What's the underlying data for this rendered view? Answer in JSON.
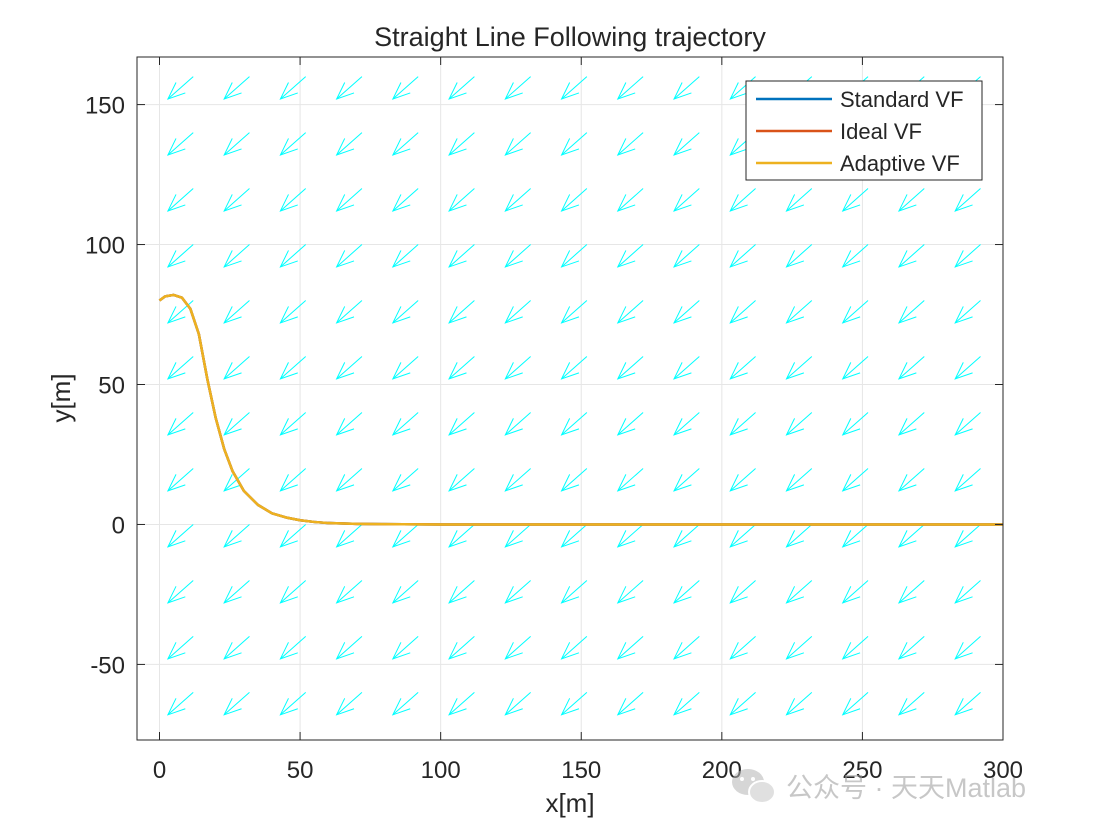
{
  "chart_data": {
    "type": "line",
    "title": "Straight Line Following trajectory",
    "xlabel": "x[m]",
    "ylabel": "y[m]",
    "xlim": [
      -8,
      300
    ],
    "ylim": [
      -77,
      167
    ],
    "xticks": [
      0,
      50,
      100,
      150,
      200,
      250,
      300
    ],
    "yticks": [
      -50,
      0,
      50,
      100,
      150
    ],
    "xtick_labels": [
      "0",
      "50",
      "100",
      "150",
      "200",
      "250",
      "300"
    ],
    "ytick_labels": [
      "-50",
      "0",
      "50",
      "100",
      "150"
    ],
    "grid": true,
    "legend_position": "top-right",
    "series": [
      {
        "name": "Standard VF",
        "color": "#0072BD",
        "x": [
          0,
          2,
          5,
          8,
          11,
          14,
          17,
          20,
          23,
          26,
          30,
          35,
          40,
          45,
          50,
          55,
          60,
          70,
          80,
          100,
          150,
          200,
          250,
          300
        ],
        "y": [
          80,
          81.5,
          82,
          81,
          77,
          68,
          52,
          38,
          27,
          19,
          12,
          7,
          4,
          2.5,
          1.5,
          0.9,
          0.5,
          0.2,
          0.1,
          0,
          0,
          0,
          0,
          0
        ]
      },
      {
        "name": "Ideal VF",
        "color": "#D95319",
        "x": [
          0,
          2,
          5,
          8,
          11,
          14,
          17,
          20,
          23,
          26,
          30,
          35,
          40,
          45,
          50,
          55,
          60,
          70,
          80,
          100,
          150,
          200,
          250,
          300
        ],
        "y": [
          80,
          81.5,
          82,
          81,
          77,
          68,
          52,
          38,
          27,
          19,
          12,
          7,
          4,
          2.5,
          1.5,
          0.9,
          0.5,
          0.2,
          0.1,
          0,
          0,
          0,
          0,
          0
        ]
      },
      {
        "name": "Adaptive VF",
        "color": "#EDB120",
        "x": [
          0,
          2,
          5,
          8,
          11,
          14,
          17,
          20,
          23,
          26,
          30,
          35,
          40,
          45,
          50,
          55,
          60,
          70,
          80,
          100,
          150,
          200,
          250,
          300
        ],
        "y": [
          80,
          81.5,
          82,
          81,
          77,
          68,
          52,
          38,
          27,
          19,
          12,
          7,
          4,
          2.5,
          1.5,
          0.9,
          0.5,
          0.2,
          0.1,
          0,
          0,
          0,
          0,
          0
        ]
      }
    ],
    "quiver": {
      "color": "#00FFFF",
      "x_start": -8,
      "x_step": 20,
      "x_count": 16,
      "y_start": -60,
      "y_step": 20,
      "y_count": 12,
      "u": -9,
      "v": -8
    }
  },
  "watermark": {
    "text": "公众号 · 天天Matlab"
  }
}
